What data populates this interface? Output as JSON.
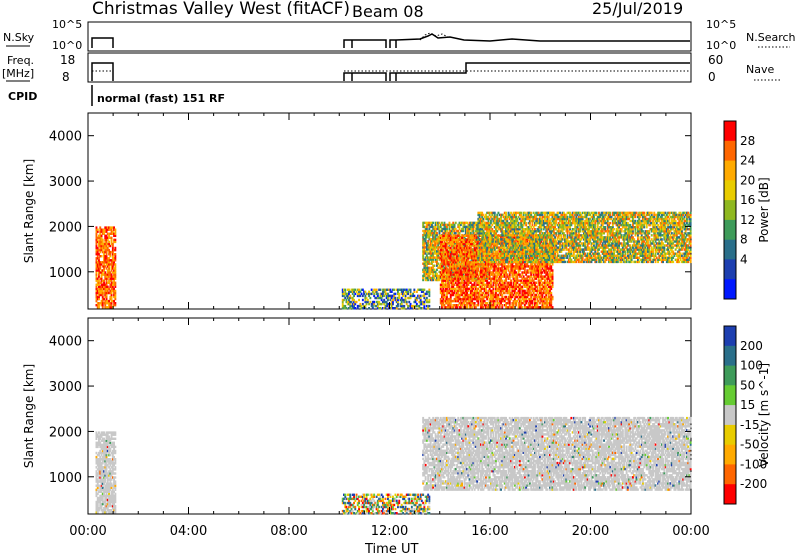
{
  "header": {
    "radar": "Christmas Valley West (fitACF)",
    "beam": "Beam 08",
    "date": "25/Jul/2019"
  },
  "panels": {
    "nsky_label": "N.Sky",
    "nsky_ticks": [
      "10^5",
      "10^0"
    ],
    "nsearch_label": "N.Search",
    "nsearch_ticks": [
      "10^5",
      "10^0"
    ],
    "freq_label": "Freq.",
    "freq_unit": "[MHz]",
    "freq_ticks": [
      "18",
      "8"
    ],
    "nave_label": "Nave",
    "nave_ticks": [
      "60",
      "0"
    ],
    "cpid_label": "CPID",
    "cpid_text": "normal (fast) 151 RF"
  },
  "chart_data": [
    {
      "type": "heatmap",
      "name": "power",
      "xlabel": "",
      "ylabel": "Slant Range [km]",
      "yticks": [
        "4000",
        "3000",
        "2000",
        "1000"
      ],
      "ylim": [
        180,
        4500
      ],
      "xlim": [
        0,
        24
      ],
      "colorbar": {
        "label": "Power [dB]",
        "ticks": [
          "28",
          "24",
          "20",
          "16",
          "12",
          "8",
          "4"
        ],
        "colors": [
          "#ff0000",
          "#ff6600",
          "#ffaa00",
          "#e8cc00",
          "#8fb820",
          "#3e9b5a",
          "#2a6f8a",
          "#1d3fb0",
          "#0018ff"
        ]
      },
      "regions": [
        {
          "t": [
            0.3,
            1.1
          ],
          "r": [
            200,
            2000
          ],
          "level": "high"
        },
        {
          "t": [
            10.1,
            13.6
          ],
          "r": [
            180,
            600
          ],
          "level": "mixed"
        },
        {
          "t": [
            13.3,
            16.0
          ],
          "r": [
            800,
            2100
          ],
          "level": "mid"
        },
        {
          "t": [
            14.0,
            18.5
          ],
          "r": [
            200,
            1800
          ],
          "level": "high"
        },
        {
          "t": [
            15.5,
            24.0
          ],
          "r": [
            1200,
            2300
          ],
          "level": "mid"
        }
      ]
    },
    {
      "type": "heatmap",
      "name": "velocity",
      "xlabel": "Time UT",
      "ylabel": "Slant Range [km]",
      "xticks": [
        "00:00",
        "04:00",
        "08:00",
        "12:00",
        "16:00",
        "20:00",
        "00:00"
      ],
      "yticks": [
        "4000",
        "3000",
        "2000",
        "1000"
      ],
      "ylim": [
        180,
        4500
      ],
      "xlim": [
        0,
        24
      ],
      "colorbar": {
        "label": "Velocity [m s^-1]",
        "ticks": [
          "200",
          "100",
          "50",
          "15",
          "-15",
          "-50",
          "-100",
          "-200"
        ],
        "colors": [
          "#1d3fb0",
          "#2a6f8a",
          "#3e9b5a",
          "#66cc33",
          "#c8c8c8",
          "#e8cc00",
          "#ffaa00",
          "#ff6600",
          "#ff0000"
        ]
      },
      "regions": [
        {
          "t": [
            0.3,
            1.1
          ],
          "r": [
            200,
            2000
          ],
          "level": "ground"
        },
        {
          "t": [
            10.1,
            13.6
          ],
          "r": [
            180,
            600
          ],
          "level": "mixed"
        },
        {
          "t": [
            13.3,
            24.0
          ],
          "r": [
            700,
            2300
          ],
          "level": "ground"
        }
      ]
    }
  ]
}
